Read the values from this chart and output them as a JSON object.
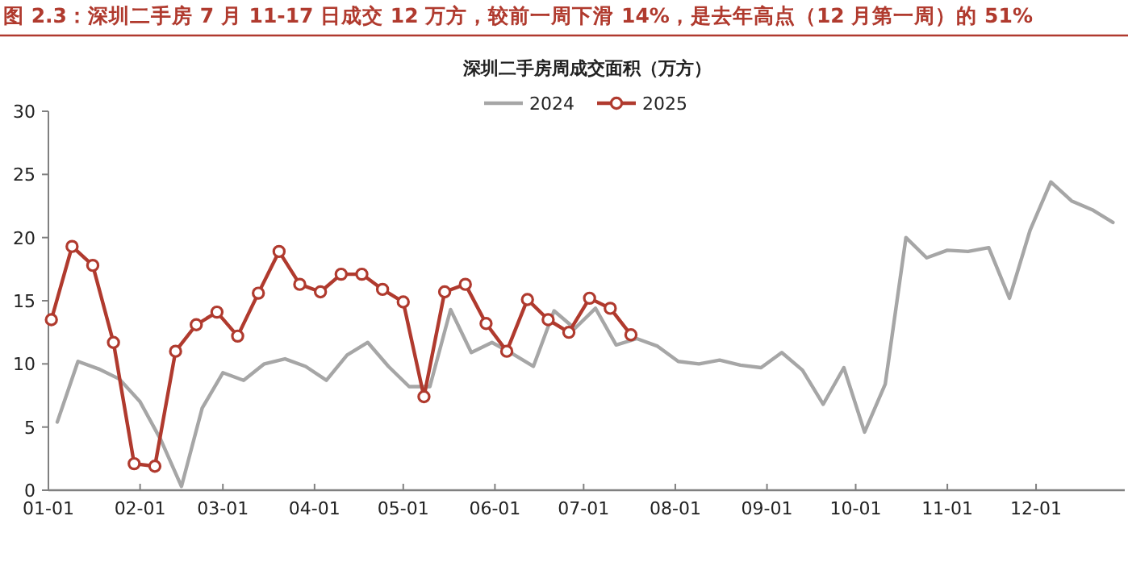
{
  "chart_data": {
    "type": "line",
    "title": "图 2.3：深圳二手房 7 月 11-17 日成交 12 万方，较前一周下滑 14%，是去年高点（12 月第一周）的 51%",
    "subtitle": "深圳二手房周成交面积（万方）",
    "xlim": [
      "--01-01",
      "--12-31"
    ],
    "xticks": [
      {
        "value": "--01-01",
        "label": "01-01"
      },
      {
        "value": "--02-01",
        "label": "02-01"
      },
      {
        "value": "--03-01",
        "label": "03-01"
      },
      {
        "value": "--04-01",
        "label": "04-01"
      },
      {
        "value": "--05-01",
        "label": "05-01"
      },
      {
        "value": "--06-01",
        "label": "06-01"
      },
      {
        "value": "--07-01",
        "label": "07-01"
      },
      {
        "value": "--08-01",
        "label": "08-01"
      },
      {
        "value": "--09-01",
        "label": "09-01"
      },
      {
        "value": "--10-01",
        "label": "10-01"
      },
      {
        "value": "--11-01",
        "label": "11-01"
      },
      {
        "value": "--12-01",
        "label": "12-01"
      }
    ],
    "ylim": [
      0,
      30
    ],
    "yticks": [
      0,
      5,
      10,
      15,
      20,
      25,
      30
    ],
    "legend": "top",
    "series": [
      {
        "name": "2024",
        "color": "#a6a6a6",
        "line_style": "solid",
        "x": [
          "--01-04",
          "--01-11",
          "--01-18",
          "--01-25",
          "--02-01",
          "--02-08",
          "--02-15",
          "--02-22",
          "--03-01",
          "--03-08",
          "--03-15",
          "--03-22",
          "--03-29",
          "--04-05",
          "--04-12",
          "--04-19",
          "--04-26",
          "--05-03",
          "--05-10",
          "--05-17",
          "--05-24",
          "--05-31",
          "--06-07",
          "--06-14",
          "--06-21",
          "--06-28",
          "--07-05",
          "--07-12",
          "--07-19",
          "--07-26",
          "--08-02",
          "--08-09",
          "--08-16",
          "--08-23",
          "--08-30",
          "--09-06",
          "--09-13",
          "--09-20",
          "--09-27",
          "--10-04",
          "--10-11",
          "--10-18",
          "--10-25",
          "--11-01",
          "--11-08",
          "--11-15",
          "--11-22",
          "--11-29",
          "--12-06",
          "--12-13",
          "--12-20",
          "--12-27"
        ],
        "values": [
          5.4,
          10.2,
          9.6,
          8.8,
          7.0,
          4.0,
          0.3,
          6.5,
          9.3,
          8.7,
          10.0,
          10.4,
          9.8,
          8.7,
          10.7,
          11.7,
          9.8,
          8.2,
          8.2,
          14.3,
          10.9,
          11.7,
          10.8,
          9.8,
          14.2,
          12.8,
          14.4,
          11.5,
          12.0,
          11.4,
          10.2,
          10.0,
          10.3,
          9.9,
          9.7,
          10.9,
          9.5,
          6.8,
          9.7,
          4.6,
          8.4,
          20.0,
          18.4,
          19.0,
          18.9,
          19.2,
          15.2,
          20.6,
          24.4,
          22.9,
          22.2,
          21.2
        ]
      },
      {
        "name": "2025",
        "color": "#b03a2e",
        "line_style": "solid",
        "marker": "circle",
        "x": [
          "--01-02",
          "--01-09",
          "--01-16",
          "--01-23",
          "--01-30",
          "--02-06",
          "--02-13",
          "--02-20",
          "--02-27",
          "--03-06",
          "--03-13",
          "--03-20",
          "--03-27",
          "--04-03",
          "--04-10",
          "--04-17",
          "--04-24",
          "--05-01",
          "--05-08",
          "--05-15",
          "--05-22",
          "--05-29",
          "--06-05",
          "--06-12",
          "--06-19",
          "--06-26",
          "--07-03",
          "--07-10",
          "--07-17"
        ],
        "values": [
          13.5,
          19.3,
          17.8,
          11.7,
          2.1,
          1.9,
          11.0,
          13.1,
          14.1,
          12.2,
          15.6,
          18.9,
          16.3,
          15.7,
          17.1,
          17.1,
          15.9,
          14.9,
          7.4,
          15.7,
          16.3,
          13.2,
          11.0,
          15.1,
          13.5,
          12.5,
          15.2,
          14.4,
          12.3
        ]
      }
    ]
  }
}
